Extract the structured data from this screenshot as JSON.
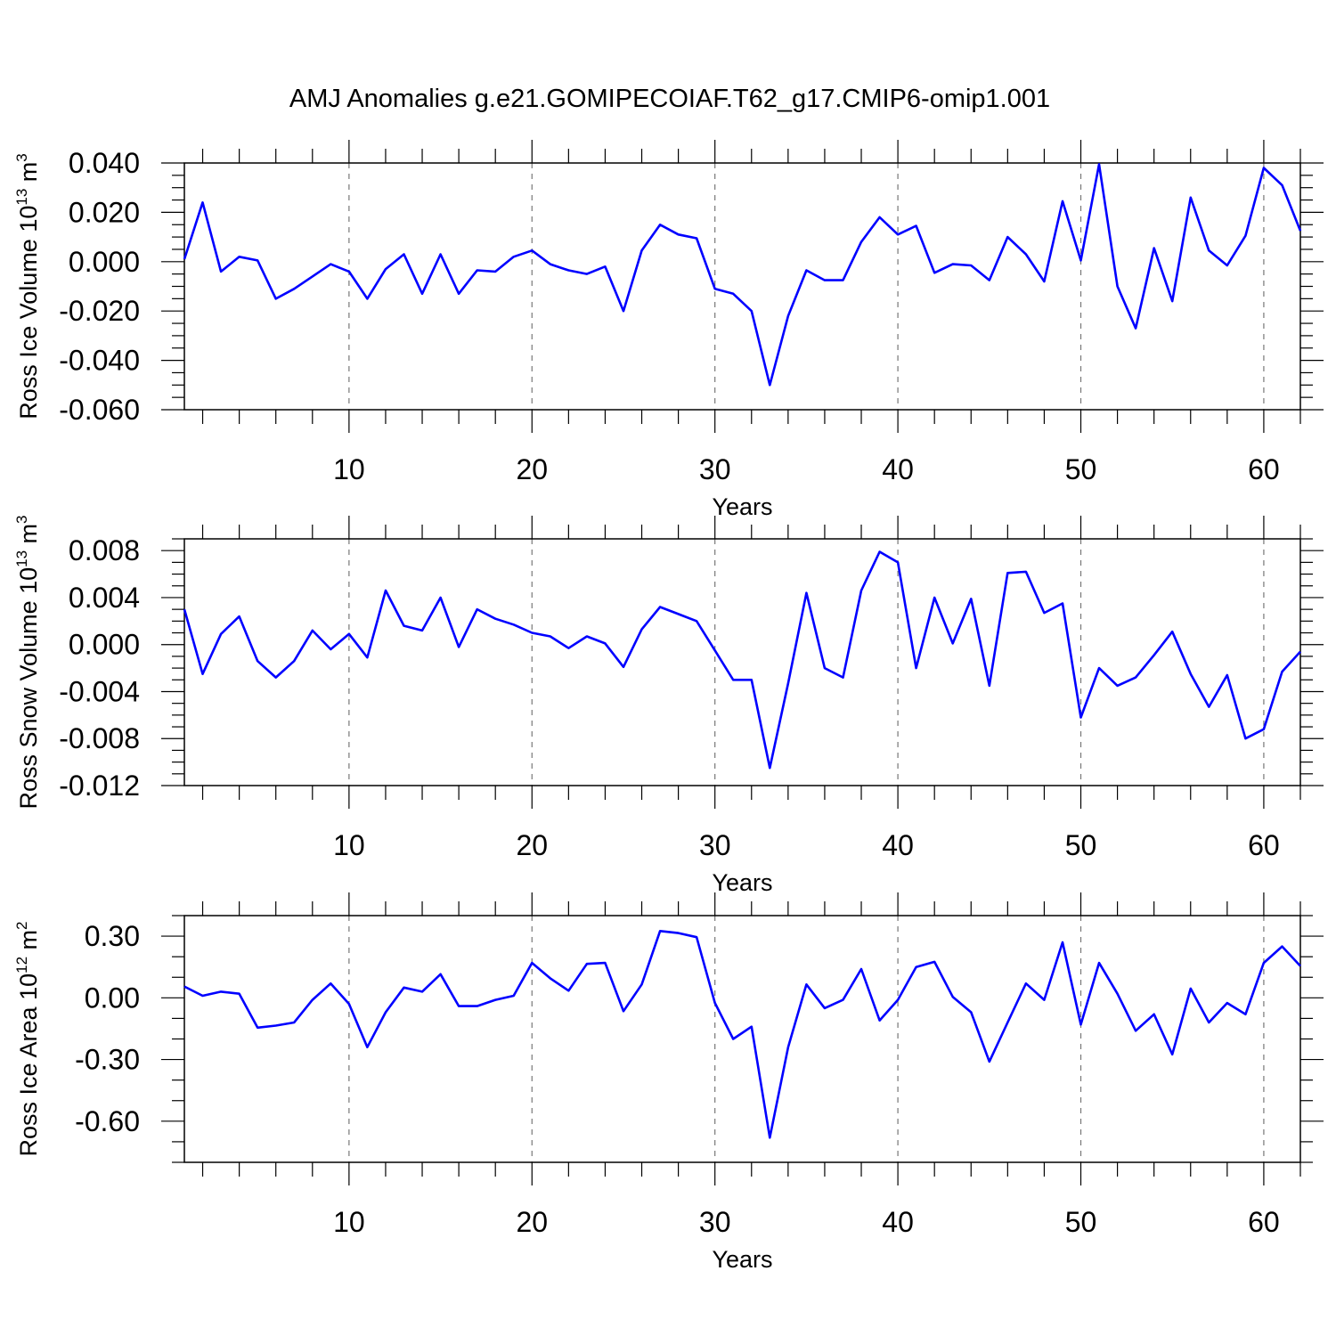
{
  "figure": {
    "title": "AMJ Anomalies g.e21.GOMIPECOIAF.T62_g17.CMIP6-omip1.001"
  },
  "colors": {
    "line": "#0000ff",
    "grid": "#777777"
  },
  "chart_data": [
    {
      "type": "line",
      "id": "ice-volume",
      "ylabel_main": "Ross Ice Volume 10",
      "ylabel_exp": "13",
      "ylabel_unit": " m",
      "ylabel_unit_exp": "3",
      "xlabel": "Years",
      "xlim": [
        1,
        62
      ],
      "ylim": [
        -0.06,
        0.04
      ],
      "xticks": [
        10,
        20,
        30,
        40,
        50,
        60
      ],
      "xtick_labels": [
        "10",
        "20",
        "30",
        "40",
        "50",
        "60"
      ],
      "yticks": [
        -0.06,
        -0.04,
        -0.02,
        0.0,
        0.02,
        0.04
      ],
      "ytick_labels": [
        "-0.060",
        "-0.040",
        "-0.020",
        "0.000",
        "0.020",
        "0.040"
      ],
      "minor_y_step": 0.005,
      "grid_x": true,
      "x": [
        1,
        2,
        3,
        4,
        5,
        6,
        7,
        8,
        9,
        10,
        11,
        12,
        13,
        14,
        15,
        16,
        17,
        18,
        19,
        20,
        21,
        22,
        23,
        24,
        25,
        26,
        27,
        28,
        29,
        30,
        31,
        32,
        33,
        34,
        35,
        36,
        37,
        38,
        39,
        40,
        41,
        42,
        43,
        44,
        45,
        46,
        47,
        48,
        49,
        50,
        51,
        52,
        53,
        54,
        55,
        56,
        57,
        58,
        59,
        60,
        61,
        62
      ],
      "y": [
        0.001,
        0.024,
        -0.004,
        0.002,
        0.0005,
        -0.015,
        -0.011,
        -0.006,
        -0.001,
        -0.004,
        -0.015,
        -0.003,
        0.003,
        -0.013,
        0.003,
        -0.013,
        -0.0035,
        -0.004,
        0.002,
        0.0045,
        -0.001,
        -0.0035,
        -0.005,
        -0.002,
        -0.02,
        0.0045,
        0.015,
        0.011,
        0.0095,
        -0.011,
        -0.013,
        -0.02,
        -0.05,
        -0.022,
        -0.0035,
        -0.0075,
        -0.0075,
        0.008,
        0.018,
        0.011,
        0.0145,
        -0.0045,
        -0.001,
        -0.0015,
        -0.0075,
        0.01,
        0.003,
        -0.008,
        0.0245,
        0.0005,
        0.0395,
        -0.01,
        -0.027,
        0.0055,
        -0.016,
        0.026,
        0.0045,
        -0.0015,
        0.0105,
        0.038,
        0.031,
        0.0125
      ]
    },
    {
      "type": "line",
      "id": "snow-volume",
      "ylabel_main": "Ross Snow Volume 10",
      "ylabel_exp": "13",
      "ylabel_unit": " m",
      "ylabel_unit_exp": "3",
      "xlabel": "Years",
      "xlim": [
        1,
        62
      ],
      "ylim": [
        -0.012,
        0.009
      ],
      "xticks": [
        10,
        20,
        30,
        40,
        50,
        60
      ],
      "xtick_labels": [
        "10",
        "20",
        "30",
        "40",
        "50",
        "60"
      ],
      "yticks": [
        -0.012,
        -0.008,
        -0.004,
        0.0,
        0.004,
        0.008
      ],
      "ytick_labels": [
        "-0.012",
        "-0.008",
        "-0.004",
        "0.000",
        "0.004",
        "0.008"
      ],
      "minor_y_step": 0.001,
      "grid_x": true,
      "x": [
        1,
        2,
        3,
        4,
        5,
        6,
        7,
        8,
        9,
        10,
        11,
        12,
        13,
        14,
        15,
        16,
        17,
        18,
        19,
        20,
        21,
        22,
        23,
        24,
        25,
        26,
        27,
        28,
        29,
        30,
        31,
        32,
        33,
        34,
        35,
        36,
        37,
        38,
        39,
        40,
        41,
        42,
        43,
        44,
        45,
        46,
        47,
        48,
        49,
        50,
        51,
        52,
        53,
        54,
        55,
        56,
        57,
        58,
        59,
        60,
        61,
        62
      ],
      "y": [
        0.003,
        -0.0025,
        0.0009,
        0.0024,
        -0.0014,
        -0.0028,
        -0.0014,
        0.0012,
        -0.0004,
        0.0009,
        -0.0011,
        0.0046,
        0.0016,
        0.0012,
        0.004,
        -0.0002,
        0.003,
        0.0022,
        0.0017,
        0.001,
        0.0007,
        -0.0003,
        0.0007,
        0.0001,
        -0.0019,
        0.0013,
        0.0032,
        0.0026,
        0.002,
        -0.0005,
        -0.003,
        -0.003,
        -0.0105,
        -0.0033,
        0.0044,
        -0.002,
        -0.0028,
        0.0046,
        0.0079,
        0.007,
        -0.002,
        0.004,
        0.0001,
        0.0039,
        -0.0035,
        0.0061,
        0.0062,
        0.0027,
        0.0035,
        -0.0062,
        -0.002,
        -0.0035,
        -0.0028,
        -0.0009,
        0.0011,
        -0.0025,
        -0.0053,
        -0.0026,
        -0.008,
        -0.0072,
        -0.0023,
        -0.0006
      ]
    },
    {
      "type": "line",
      "id": "ice-area",
      "ylabel_main": "Ross Ice Area 10",
      "ylabel_exp": "12",
      "ylabel_unit": " m",
      "ylabel_unit_exp": "2",
      "xlabel": "Years",
      "xlim": [
        1,
        62
      ],
      "ylim": [
        -0.8,
        0.4
      ],
      "xticks": [
        10,
        20,
        30,
        40,
        50,
        60
      ],
      "xtick_labels": [
        "10",
        "20",
        "30",
        "40",
        "50",
        "60"
      ],
      "yticks": [
        -0.6,
        -0.3,
        0.0,
        0.3
      ],
      "ytick_labels": [
        "-0.60",
        "-0.30",
        "0.00",
        "0.30"
      ],
      "minor_y_step": 0.1,
      "grid_x": true,
      "x": [
        1,
        2,
        3,
        4,
        5,
        6,
        7,
        8,
        9,
        10,
        11,
        12,
        13,
        14,
        15,
        16,
        17,
        18,
        19,
        20,
        21,
        22,
        23,
        24,
        25,
        26,
        27,
        28,
        29,
        30,
        31,
        32,
        33,
        34,
        35,
        36,
        37,
        38,
        39,
        40,
        41,
        42,
        43,
        44,
        45,
        46,
        47,
        48,
        49,
        50,
        51,
        52,
        53,
        54,
        55,
        56,
        57,
        58,
        59,
        60,
        61,
        62
      ],
      "y": [
        0.055,
        0.01,
        0.03,
        0.02,
        -0.145,
        -0.135,
        -0.12,
        -0.01,
        0.07,
        -0.03,
        -0.24,
        -0.07,
        0.05,
        0.03,
        0.115,
        -0.04,
        -0.04,
        -0.01,
        0.01,
        0.17,
        0.095,
        0.035,
        0.165,
        0.17,
        -0.065,
        0.065,
        0.325,
        0.315,
        0.295,
        -0.025,
        -0.2,
        -0.14,
        -0.68,
        -0.24,
        0.065,
        -0.05,
        -0.01,
        0.14,
        -0.11,
        -0.01,
        0.15,
        0.175,
        0.005,
        -0.07,
        -0.31,
        -0.12,
        0.07,
        -0.01,
        0.27,
        -0.13,
        0.17,
        0.02,
        -0.16,
        -0.08,
        -0.275,
        0.045,
        -0.12,
        -0.025,
        -0.08,
        0.17,
        0.25,
        0.155
      ]
    }
  ]
}
